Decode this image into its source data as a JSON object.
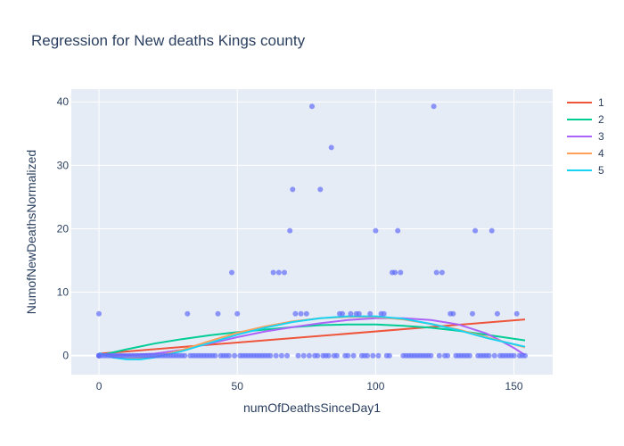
{
  "chart_data": {
    "type": "scatter",
    "title": "Regression for New deaths Kings county",
    "xlabel": "numOfDeathsSinceDay1",
    "ylabel": "NumofNewDeathsNormalized",
    "xlim": [
      -10,
      164
    ],
    "ylim": [
      -3,
      42
    ],
    "xticks": [
      0,
      50,
      100,
      150
    ],
    "yticks": [
      0,
      10,
      20,
      30,
      40
    ],
    "grid": true,
    "background": "#e5ecf6",
    "scatter": {
      "color": "#636efa",
      "points": [
        [
          0,
          0
        ],
        [
          0,
          0
        ],
        [
          0,
          0
        ],
        [
          0,
          0
        ],
        [
          0,
          0
        ],
        [
          0,
          6.6
        ],
        [
          1,
          0
        ],
        [
          2,
          0
        ],
        [
          3,
          0
        ],
        [
          4,
          0
        ],
        [
          5,
          0
        ],
        [
          6,
          0
        ],
        [
          7,
          0
        ],
        [
          8,
          0
        ],
        [
          9,
          0
        ],
        [
          10,
          0
        ],
        [
          11,
          0
        ],
        [
          12,
          0
        ],
        [
          13,
          0
        ],
        [
          14,
          0
        ],
        [
          15,
          0
        ],
        [
          16,
          0
        ],
        [
          17,
          0
        ],
        [
          18,
          0
        ],
        [
          19,
          0
        ],
        [
          20,
          0
        ],
        [
          21,
          0
        ],
        [
          22,
          0
        ],
        [
          23,
          0
        ],
        [
          24,
          0
        ],
        [
          25,
          0
        ],
        [
          26,
          0
        ],
        [
          27,
          0
        ],
        [
          28,
          0
        ],
        [
          29,
          0
        ],
        [
          30,
          0
        ],
        [
          31,
          0
        ],
        [
          32,
          6.6
        ],
        [
          33,
          0
        ],
        [
          34,
          0
        ],
        [
          35,
          0
        ],
        [
          36,
          0
        ],
        [
          37,
          0
        ],
        [
          38,
          0
        ],
        [
          39,
          0
        ],
        [
          40,
          0
        ],
        [
          41,
          0
        ],
        [
          42,
          0
        ],
        [
          43,
          6.6
        ],
        [
          44,
          0
        ],
        [
          45,
          0
        ],
        [
          46,
          0
        ],
        [
          47,
          0
        ],
        [
          48,
          13.1
        ],
        [
          49,
          0
        ],
        [
          50,
          6.6
        ],
        [
          51,
          0
        ],
        [
          52,
          0
        ],
        [
          53,
          0
        ],
        [
          54,
          0
        ],
        [
          55,
          0
        ],
        [
          56,
          0
        ],
        [
          57,
          0
        ],
        [
          58,
          0
        ],
        [
          59,
          0
        ],
        [
          60,
          0
        ],
        [
          61,
          0
        ],
        [
          62,
          0
        ],
        [
          63,
          13.1
        ],
        [
          64,
          0
        ],
        [
          65,
          13.1
        ],
        [
          66,
          0
        ],
        [
          67,
          13.1
        ],
        [
          68,
          0
        ],
        [
          69,
          19.7
        ],
        [
          70,
          26.2
        ],
        [
          71,
          6.6
        ],
        [
          72,
          0
        ],
        [
          73,
          6.6
        ],
        [
          74,
          0
        ],
        [
          75,
          6.6
        ],
        [
          76,
          0
        ],
        [
          77,
          39.3
        ],
        [
          78,
          0
        ],
        [
          79,
          0
        ],
        [
          80,
          26.2
        ],
        [
          81,
          0
        ],
        [
          82,
          0
        ],
        [
          83,
          0
        ],
        [
          84,
          32.8
        ],
        [
          85,
          0
        ],
        [
          86,
          0
        ],
        [
          87,
          6.6
        ],
        [
          88,
          6.6
        ],
        [
          89,
          0
        ],
        [
          90,
          0
        ],
        [
          91,
          6.6
        ],
        [
          92,
          0
        ],
        [
          93,
          6.6
        ],
        [
          94,
          6.6
        ],
        [
          95,
          0
        ],
        [
          96,
          0
        ],
        [
          97,
          0
        ],
        [
          98,
          6.6
        ],
        [
          99,
          0
        ],
        [
          100,
          19.7
        ],
        [
          101,
          0
        ],
        [
          102,
          6.6
        ],
        [
          103,
          6.6
        ],
        [
          104,
          0
        ],
        [
          105,
          0
        ],
        [
          106,
          13.1
        ],
        [
          107,
          13.1
        ],
        [
          108,
          19.7
        ],
        [
          109,
          13.1
        ],
        [
          110,
          0
        ],
        [
          111,
          0
        ],
        [
          112,
          0
        ],
        [
          113,
          0
        ],
        [
          114,
          0
        ],
        [
          115,
          0
        ],
        [
          116,
          0
        ],
        [
          117,
          0
        ],
        [
          118,
          0
        ],
        [
          119,
          0
        ],
        [
          120,
          0
        ],
        [
          121,
          39.3
        ],
        [
          122,
          13.1
        ],
        [
          123,
          0
        ],
        [
          124,
          13.1
        ],
        [
          125,
          0
        ],
        [
          126,
          0
        ],
        [
          127,
          6.6
        ],
        [
          128,
          6.6
        ],
        [
          129,
          0
        ],
        [
          130,
          0
        ],
        [
          131,
          0
        ],
        [
          132,
          0
        ],
        [
          133,
          0
        ],
        [
          134,
          0
        ],
        [
          135,
          6.6
        ],
        [
          136,
          19.7
        ],
        [
          137,
          0
        ],
        [
          138,
          0
        ],
        [
          139,
          0
        ],
        [
          140,
          0
        ],
        [
          141,
          0
        ],
        [
          142,
          19.7
        ],
        [
          143,
          0
        ],
        [
          144,
          6.6
        ],
        [
          145,
          0
        ],
        [
          146,
          0
        ],
        [
          147,
          0
        ],
        [
          148,
          0
        ],
        [
          149,
          0
        ],
        [
          150,
          0
        ],
        [
          151,
          6.6
        ],
        [
          152,
          0
        ],
        [
          153,
          0
        ],
        [
          154,
          0
        ]
      ]
    },
    "series": [
      {
        "name": "1",
        "color": "#EF553B",
        "x": [
          0,
          154
        ],
        "y": [
          0.3,
          5.7
        ]
      },
      {
        "name": "2",
        "color": "#00cc96",
        "x": [
          0,
          10,
          20,
          30,
          40,
          50,
          60,
          70,
          80,
          90,
          100,
          110,
          120,
          130,
          140,
          154
        ],
        "y": [
          0,
          1.0,
          1.9,
          2.6,
          3.2,
          3.7,
          4.1,
          4.5,
          4.8,
          4.9,
          4.9,
          4.7,
          4.4,
          3.9,
          3.3,
          2.4
        ]
      },
      {
        "name": "3",
        "color": "#ab63fa",
        "x": [
          0,
          10,
          20,
          30,
          40,
          50,
          60,
          70,
          80,
          90,
          100,
          110,
          120,
          130,
          140,
          145,
          150,
          154
        ],
        "y": [
          0.2,
          0.1,
          0.3,
          0.9,
          1.9,
          2.9,
          3.8,
          4.5,
          5.1,
          5.6,
          5.9,
          5.9,
          5.6,
          4.9,
          3.5,
          2.4,
          1.2,
          0.1
        ]
      },
      {
        "name": "4",
        "color": "#FFA15A",
        "x": [
          0,
          10,
          20,
          30,
          40,
          50,
          60,
          70,
          80,
          90,
          100,
          110,
          120,
          130,
          140,
          154
        ],
        "y": [
          0.2,
          -0.5,
          -0.2,
          0.9,
          2.3,
          3.6,
          4.6,
          5.4,
          5.9,
          6.1,
          6.1,
          5.7,
          5.0,
          4.1,
          2.9,
          1.3
        ]
      },
      {
        "name": "5",
        "color": "#19d3f3",
        "x": [
          0,
          5,
          10,
          15,
          20,
          30,
          40,
          50,
          60,
          70,
          80,
          90,
          100,
          110,
          120,
          130,
          140,
          150,
          154
        ],
        "y": [
          0.4,
          -0.3,
          -0.6,
          -0.6,
          -0.3,
          0.7,
          2.0,
          3.3,
          4.4,
          5.3,
          5.9,
          6.2,
          6.2,
          5.8,
          5.0,
          4.0,
          2.8,
          1.8,
          1.4
        ]
      }
    ],
    "legend": {
      "position": "top-right",
      "entries": [
        "1",
        "2",
        "3",
        "4",
        "5"
      ]
    }
  }
}
